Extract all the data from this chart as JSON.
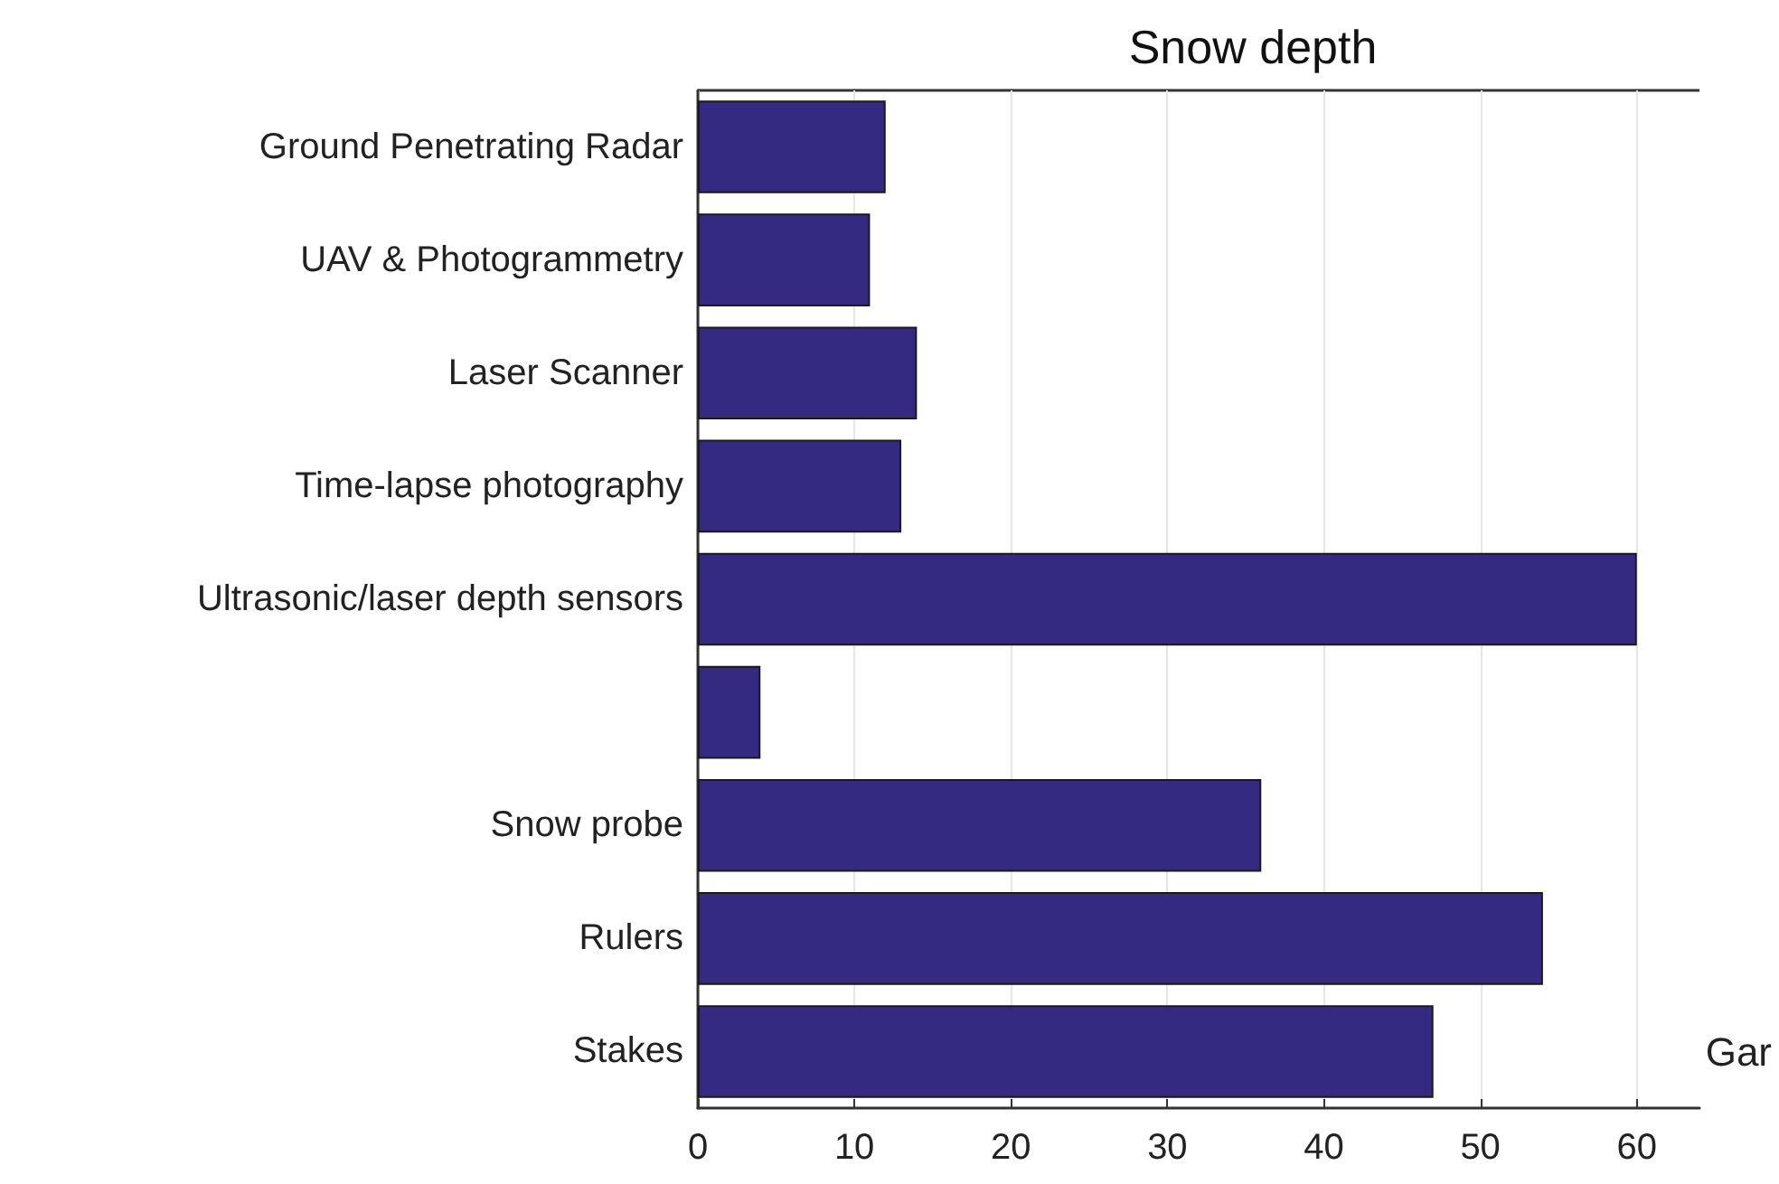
{
  "chart_data": {
    "type": "bar",
    "orientation": "horizontal",
    "title": "Snow depth",
    "categories": [
      "Ground Penetrating Radar",
      "UAV & Photogrammetry",
      "Laser Scanner",
      "Time-lapse photography",
      "Ultrasonic/laser depth sensors",
      null,
      "Snow probe",
      "Rulers",
      "Stakes"
    ],
    "values": [
      12,
      11,
      14,
      13,
      60,
      4,
      36,
      54,
      47
    ],
    "color": "#352a82",
    "xlim": [
      0,
      64
    ],
    "xticks": [
      0,
      10,
      20,
      30,
      40,
      50,
      60
    ],
    "grid": "x",
    "annotations": [
      "Gar"
    ]
  }
}
